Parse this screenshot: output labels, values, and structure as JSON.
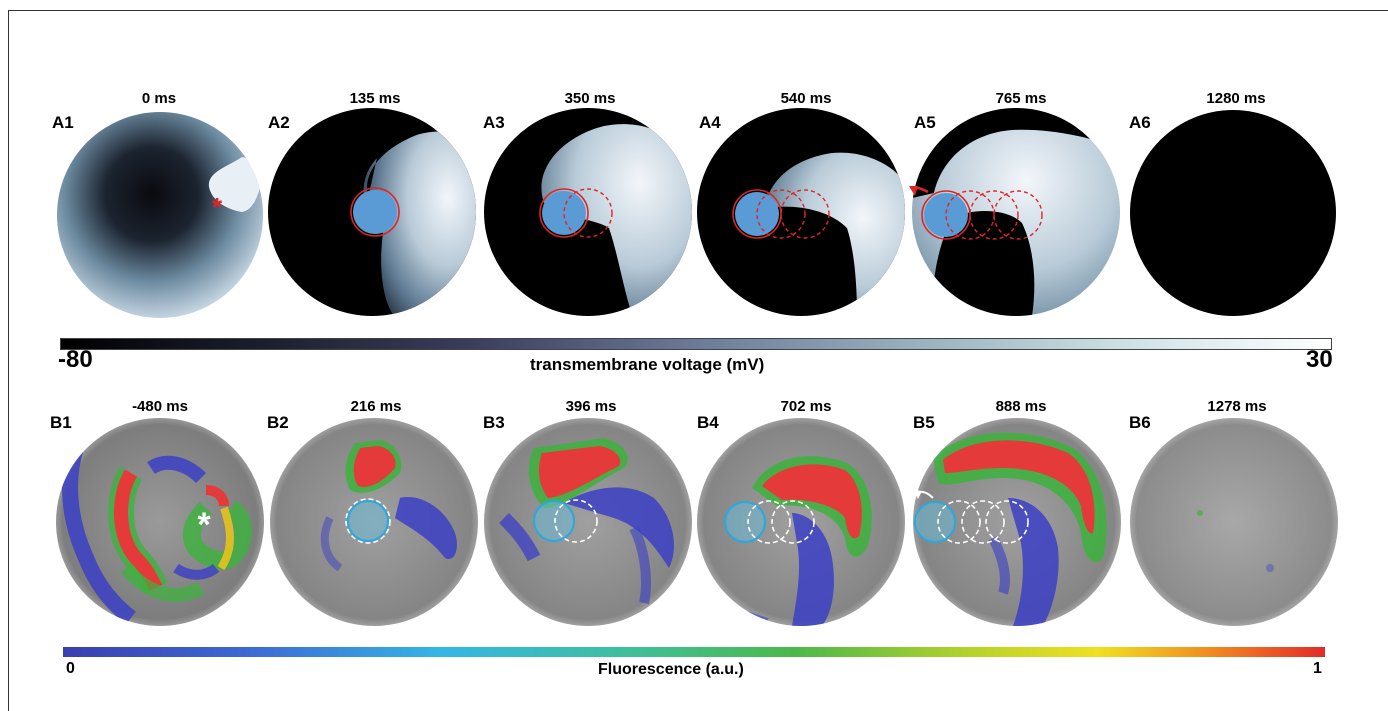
{
  "panels_row_a": [
    {
      "label": "A1",
      "time": "0 ms"
    },
    {
      "label": "A2",
      "time": "135 ms"
    },
    {
      "label": "A3",
      "time": "350 ms"
    },
    {
      "label": "A4",
      "time": "540 ms"
    },
    {
      "label": "A5",
      "time": "765 ms"
    },
    {
      "label": "A6",
      "time": "1280 ms"
    }
  ],
  "panels_row_b": [
    {
      "label": "B1",
      "time": "-480 ms"
    },
    {
      "label": "B2",
      "time": "216 ms"
    },
    {
      "label": "B3",
      "time": "396 ms"
    },
    {
      "label": "B4",
      "time": "702 ms"
    },
    {
      "label": "B5",
      "time": "888 ms"
    },
    {
      "label": "B6",
      "time": "1278 ms"
    }
  ],
  "colorbar_voltage": {
    "title": "transmembrane voltage (mV)",
    "min": "-80",
    "max": "30"
  },
  "colorbar_fluorescence": {
    "title": "Fluorescence (a.u.)",
    "min": "0",
    "max": "1"
  },
  "colors": {
    "marker_red": "#e02424",
    "marker_cyan": "#29a8e0",
    "stimulus_blue": "#5b9bd5"
  },
  "marker_symbol": "*"
}
